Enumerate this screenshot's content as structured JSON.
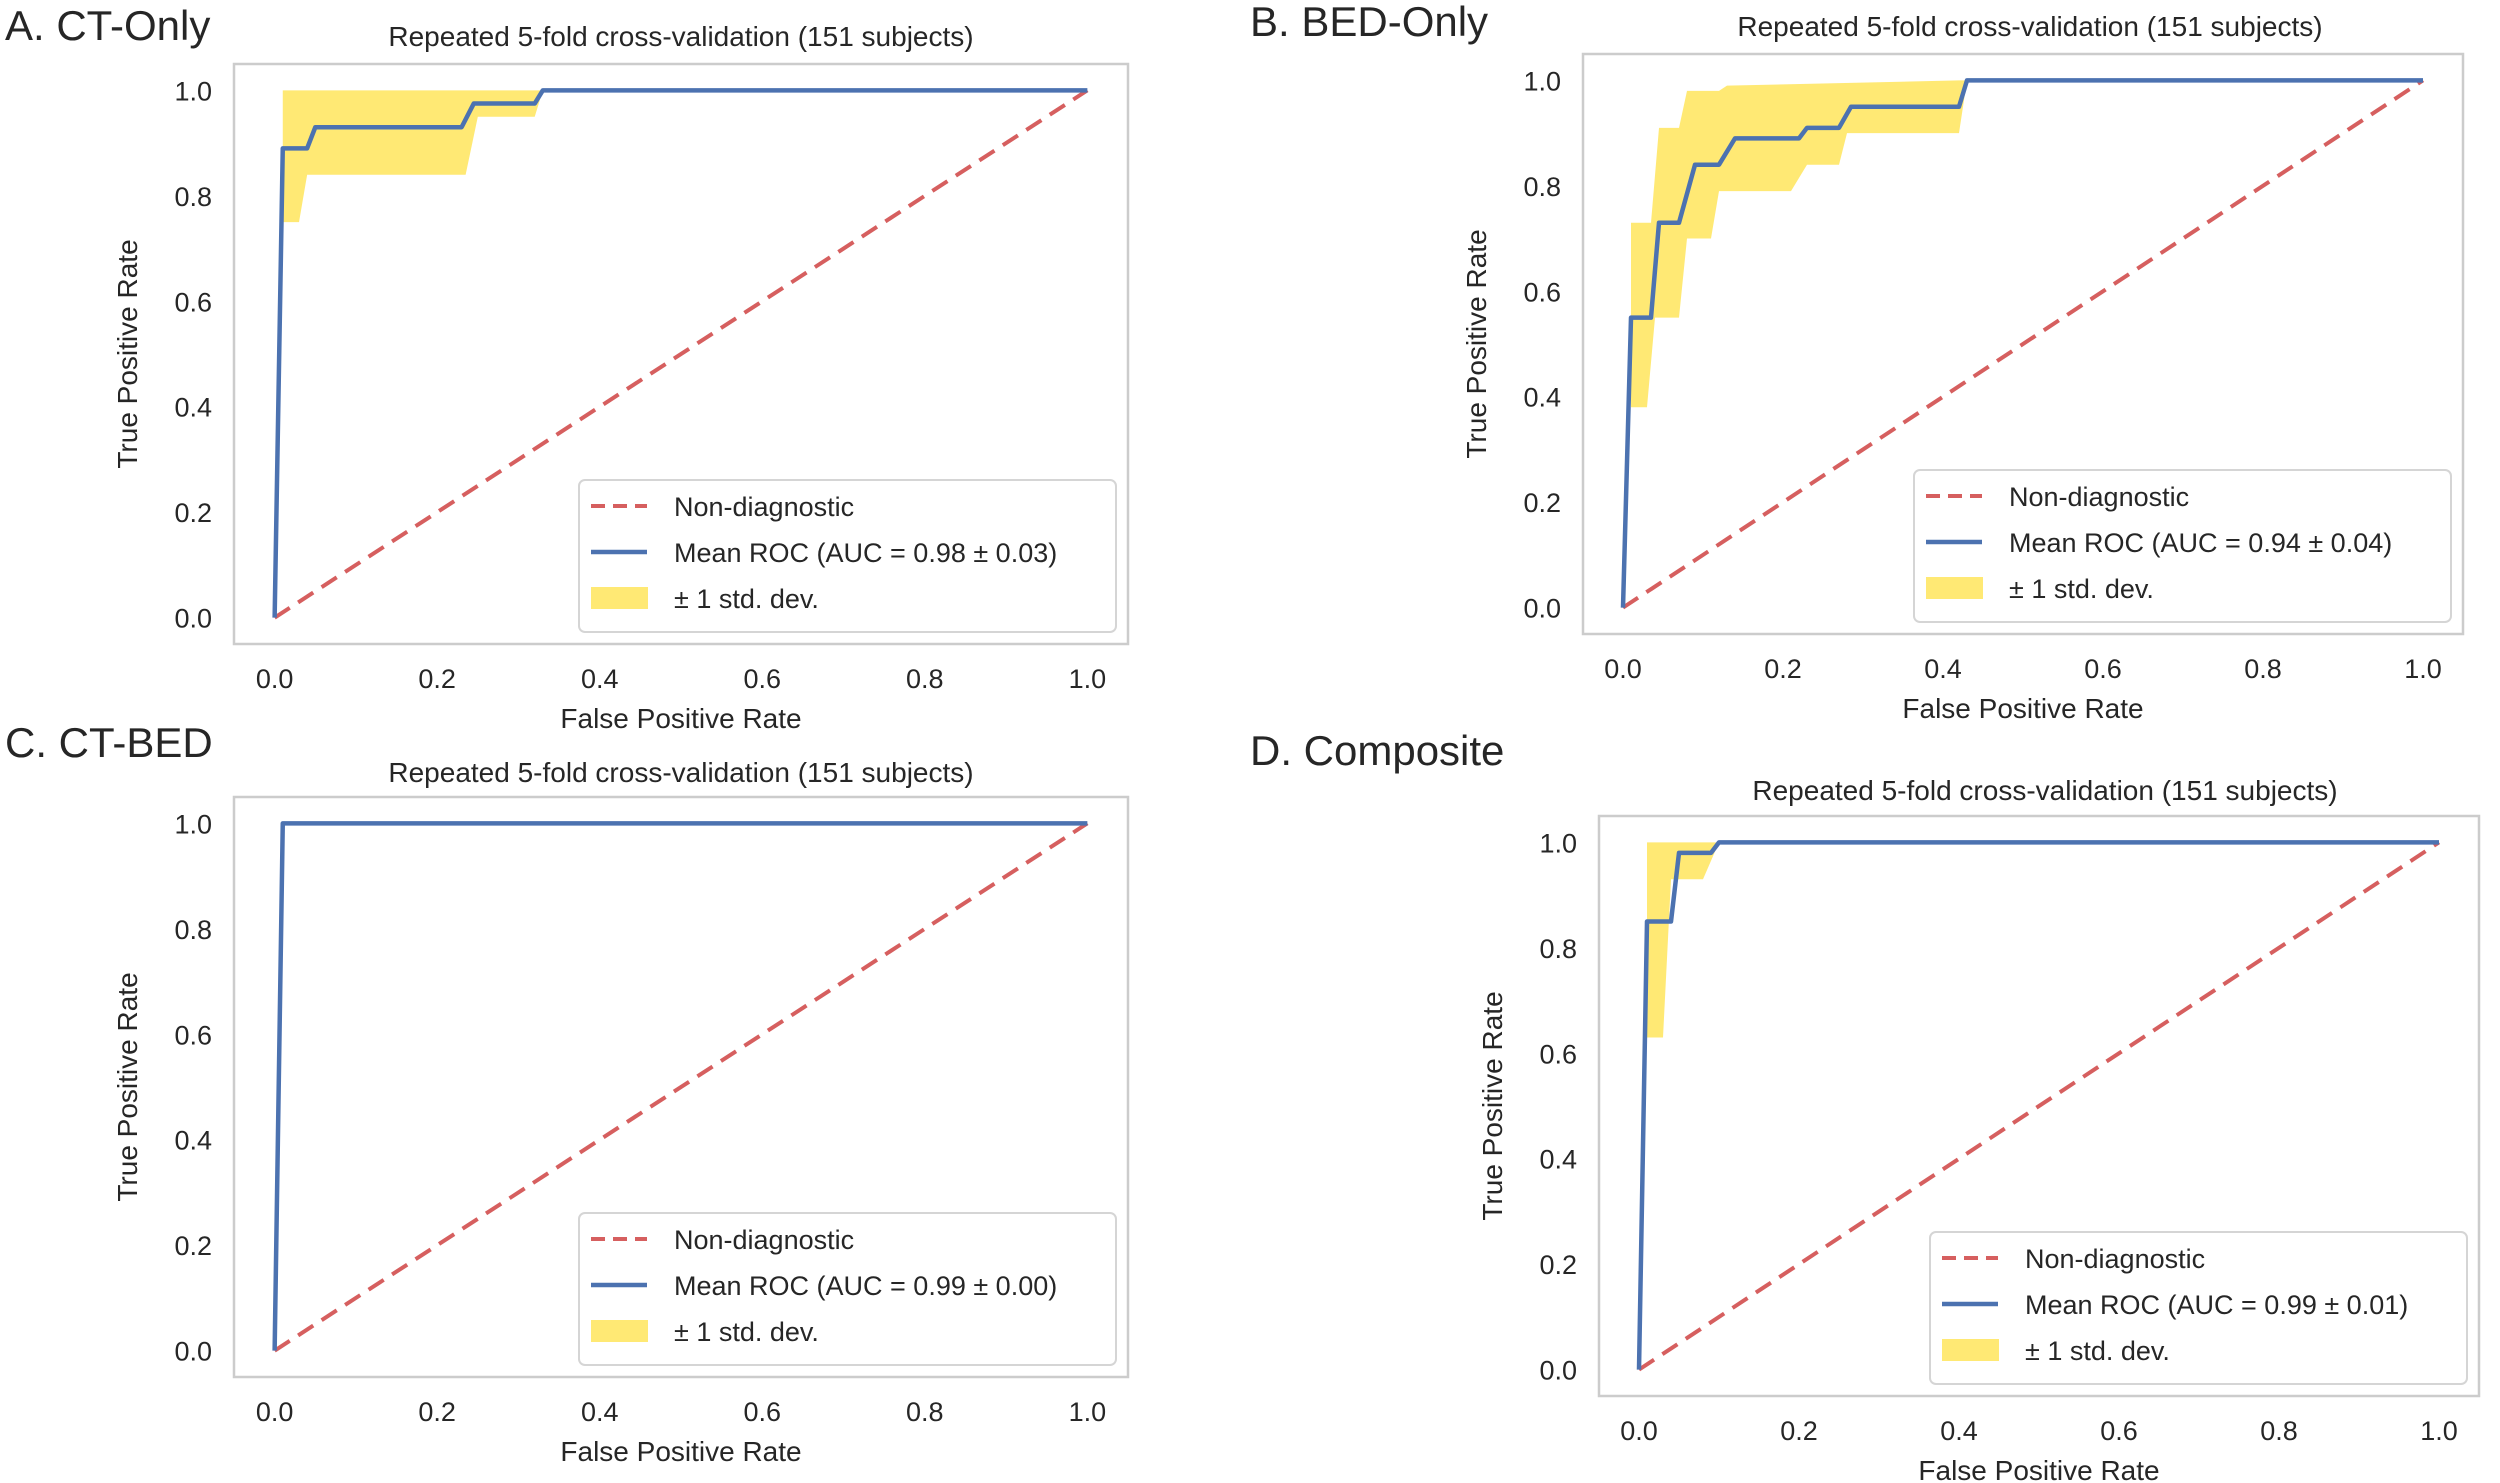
{
  "colors": {
    "mean": "#4c72b0",
    "chance": "#d65f5f",
    "band": "#ffe55c",
    "frame": "#cccccc"
  },
  "chart_data": [
    {
      "type": "line",
      "panel_label": "A. CT-Only",
      "title": "Repeated 5-fold cross-validation (151 subjects)",
      "xlabel": "False Positive Rate",
      "ylabel": "True Positive Rate",
      "xlim": [
        -0.05,
        1.05
      ],
      "ylim": [
        -0.05,
        1.05
      ],
      "xticks": [
        "0.0",
        "0.2",
        "0.4",
        "0.6",
        "0.8",
        "1.0"
      ],
      "yticks": [
        "0.0",
        "0.2",
        "0.4",
        "0.6",
        "0.8",
        "1.0"
      ],
      "grid": false,
      "legend_position": "lower-right",
      "legend": [
        "Non-diagnostic",
        "Mean ROC (AUC = 0.98 ± 0.03)",
        "± 1 std. dev."
      ],
      "mean_roc": {
        "x": [
          0,
          0.01,
          0.04,
          0.05,
          0.23,
          0.245,
          0.32,
          0.33,
          1
        ],
        "y": [
          0,
          0.89,
          0.89,
          0.93,
          0.93,
          0.975,
          0.975,
          1,
          1
        ]
      },
      "upper": {
        "x": [
          0.01,
          1
        ],
        "y": [
          1,
          1
        ]
      },
      "lower": {
        "x": [
          0.01,
          0.03,
          0.04,
          0.235,
          0.25,
          0.32,
          0.33,
          1
        ],
        "y": [
          0.75,
          0.75,
          0.84,
          0.84,
          0.95,
          0.95,
          1,
          1
        ]
      },
      "chance": {
        "x": [
          0,
          1
        ],
        "y": [
          0,
          1
        ]
      }
    },
    {
      "type": "line",
      "panel_label": "B. BED-Only",
      "title": "Repeated 5-fold cross-validation (151 subjects)",
      "xlabel": "False Positive Rate",
      "ylabel": "True Positive Rate",
      "xlim": [
        -0.05,
        1.05
      ],
      "ylim": [
        -0.05,
        1.05
      ],
      "xticks": [
        "0.0",
        "0.2",
        "0.4",
        "0.6",
        "0.8",
        "1.0"
      ],
      "yticks": [
        "0.0",
        "0.2",
        "0.4",
        "0.6",
        "0.8",
        "1.0"
      ],
      "grid": false,
      "legend_position": "lower-right",
      "legend": [
        "Non-diagnostic",
        "Mean ROC (AUC = 0.94 ± 0.04)",
        "± 1 std. dev."
      ],
      "mean_roc": {
        "x": [
          0,
          0.01,
          0.035,
          0.045,
          0.07,
          0.09,
          0.12,
          0.14,
          0.22,
          0.23,
          0.27,
          0.285,
          0.42,
          0.43,
          1
        ],
        "y": [
          0,
          0.55,
          0.55,
          0.73,
          0.73,
          0.84,
          0.84,
          0.89,
          0.89,
          0.91,
          0.91,
          0.95,
          0.95,
          1,
          1
        ]
      },
      "upper": {
        "x": [
          0.01,
          0.035,
          0.045,
          0.07,
          0.08,
          0.12,
          0.13,
          0.42,
          1
        ],
        "y": [
          0.73,
          0.73,
          0.91,
          0.91,
          0.98,
          0.98,
          0.99,
          1,
          1
        ]
      },
      "lower": {
        "x": [
          0.01,
          0.03,
          0.04,
          0.07,
          0.08,
          0.11,
          0.12,
          0.21,
          0.23,
          0.27,
          0.28,
          0.42,
          0.43,
          1
        ],
        "y": [
          0.38,
          0.38,
          0.55,
          0.55,
          0.7,
          0.7,
          0.79,
          0.79,
          0.84,
          0.84,
          0.9,
          0.9,
          1,
          1
        ]
      },
      "chance": {
        "x": [
          0,
          1
        ],
        "y": [
          0,
          1
        ]
      }
    },
    {
      "type": "line",
      "panel_label": "C. CT-BED",
      "title": "Repeated 5-fold cross-validation (151 subjects)",
      "xlabel": "False Positive Rate",
      "ylabel": "True Positive Rate",
      "xlim": [
        -0.05,
        1.05
      ],
      "ylim": [
        -0.05,
        1.05
      ],
      "xticks": [
        "0.0",
        "0.2",
        "0.4",
        "0.6",
        "0.8",
        "1.0"
      ],
      "yticks": [
        "0.0",
        "0.2",
        "0.4",
        "0.6",
        "0.8",
        "1.0"
      ],
      "grid": false,
      "legend_position": "lower-right",
      "legend": [
        "Non-diagnostic",
        "Mean ROC (AUC = 0.99 ± 0.00)",
        "± 1 std. dev."
      ],
      "mean_roc": {
        "x": [
          0,
          0.01,
          1
        ],
        "y": [
          0,
          1,
          1
        ]
      },
      "upper": {
        "x": [
          0.01,
          1
        ],
        "y": [
          1,
          1
        ]
      },
      "lower": {
        "x": [
          0.01,
          1
        ],
        "y": [
          1,
          1
        ]
      },
      "chance": {
        "x": [
          0,
          1
        ],
        "y": [
          0,
          1
        ]
      }
    },
    {
      "type": "line",
      "panel_label": "D. Composite",
      "title": "Repeated 5-fold cross-validation (151 subjects)",
      "xlabel": "False Positive Rate",
      "ylabel": "True Positive Rate",
      "xlim": [
        -0.05,
        1.05
      ],
      "ylim": [
        -0.05,
        1.05
      ],
      "xticks": [
        "0.0",
        "0.2",
        "0.4",
        "0.6",
        "0.8",
        "1.0"
      ],
      "yticks": [
        "0.0",
        "0.2",
        "0.4",
        "0.6",
        "0.8",
        "1.0"
      ],
      "grid": false,
      "legend_position": "lower-right",
      "legend": [
        "Non-diagnostic",
        "Mean ROC (AUC = 0.99 ± 0.01)",
        "± 1 std. dev."
      ],
      "mean_roc": {
        "x": [
          0,
          0.01,
          0.04,
          0.05,
          0.09,
          0.1,
          1
        ],
        "y": [
          0,
          0.85,
          0.85,
          0.98,
          0.98,
          1,
          1
        ]
      },
      "upper": {
        "x": [
          0.01,
          1
        ],
        "y": [
          1,
          1
        ]
      },
      "lower": {
        "x": [
          0.01,
          0.03,
          0.04,
          0.08,
          0.1,
          1
        ],
        "y": [
          0.63,
          0.63,
          0.93,
          0.93,
          1,
          1
        ]
      },
      "chance": {
        "x": [
          0,
          1
        ],
        "y": [
          0,
          1
        ]
      }
    }
  ]
}
